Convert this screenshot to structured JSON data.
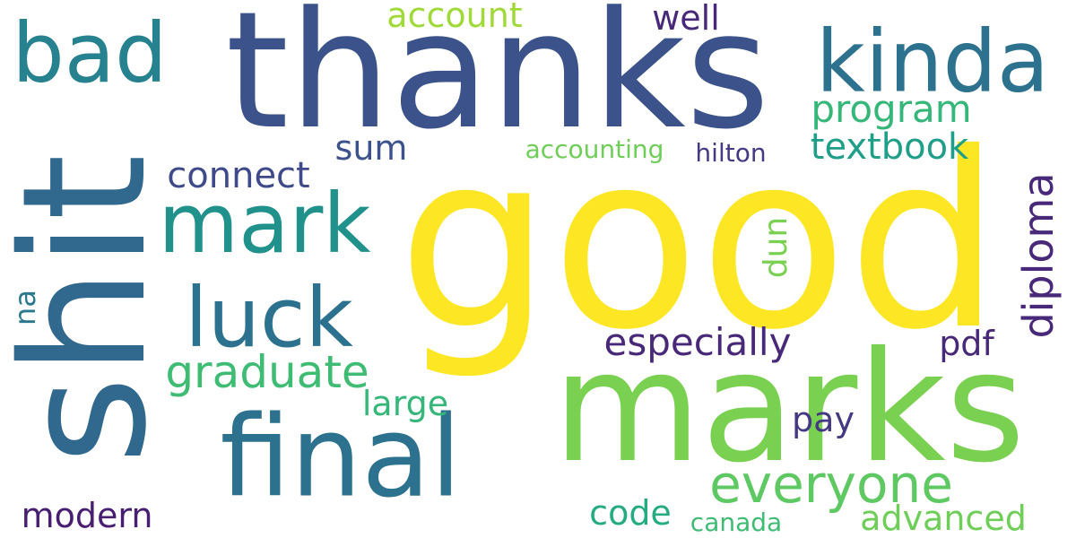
{
  "words": [
    {
      "text": "good",
      "color": "#fde725"
    },
    {
      "text": "thanks",
      "color": "#3b528b"
    },
    {
      "text": "shit",
      "color": "#31688e"
    },
    {
      "text": "marks",
      "color": "#7ad151"
    },
    {
      "text": "final",
      "color": "#2c728e"
    },
    {
      "text": "kinda",
      "color": "#2c728e"
    },
    {
      "text": "bad",
      "color": "#26828e"
    },
    {
      "text": "mark",
      "color": "#21918c"
    },
    {
      "text": "luck",
      "color": "#2c728e"
    },
    {
      "text": "everyone",
      "color": "#5ec962"
    },
    {
      "text": "graduate",
      "color": "#3fbc73"
    },
    {
      "text": "diploma",
      "color": "#482878"
    },
    {
      "text": "especially",
      "color": "#482878"
    },
    {
      "text": "program",
      "color": "#35b779"
    },
    {
      "text": "textbook",
      "color": "#1f9e89"
    },
    {
      "text": "connect",
      "color": "#3e4a89"
    },
    {
      "text": "account",
      "color": "#a0da39"
    },
    {
      "text": "sum",
      "color": "#3b528b"
    },
    {
      "text": "well",
      "color": "#482878"
    },
    {
      "text": "accounting",
      "color": "#6ece58"
    },
    {
      "text": "hilton",
      "color": "#443983"
    },
    {
      "text": "dun",
      "color": "#7ad151"
    },
    {
      "text": "pdf",
      "color": "#482878"
    },
    {
      "text": "large",
      "color": "#35b779"
    },
    {
      "text": "pay",
      "color": "#443983"
    },
    {
      "text": "code",
      "color": "#25ab82"
    },
    {
      "text": "modern",
      "color": "#481f70"
    },
    {
      "text": "advanced",
      "color": "#6ece58"
    },
    {
      "text": "canada",
      "color": "#3fbc73"
    },
    {
      "text": "na",
      "color": "#2a788e"
    }
  ]
}
